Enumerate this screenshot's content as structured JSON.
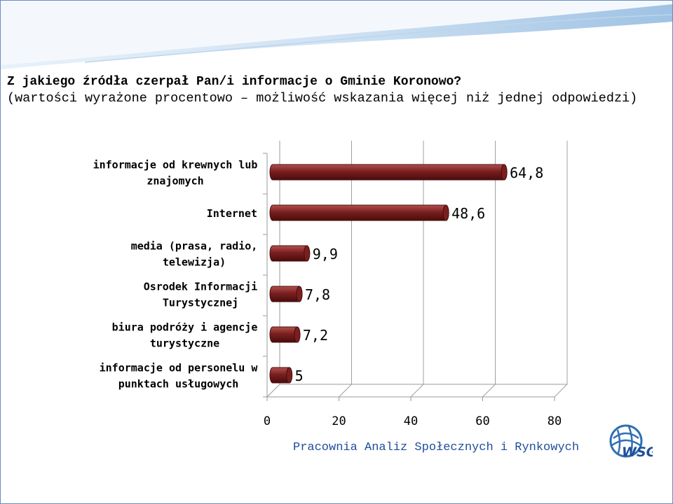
{
  "question": "Z jakiego źródła czerpał Pan/i informacje o Gminie Koronowo?",
  "note": "(wartości wyrażone procentowo – możliwość wskazania więcej niż jednej odpowiedzi)",
  "footer": "Pracownia Analiz Społecznych i Rynkowych",
  "logo_text": "WSG",
  "colors": {
    "bar": "#7a1f1f",
    "bar_light": "#b25050",
    "bar_dark": "#4a0c0c",
    "frame": "#1f4e9a",
    "swoosh": "#a9c8e6"
  },
  "chart_data": {
    "type": "bar",
    "orientation": "horizontal",
    "categories": [
      [
        "informacje od krewnych lub",
        "znajomych"
      ],
      [
        "Internet"
      ],
      [
        "media (prasa, radio,",
        "telewizja)"
      ],
      [
        "Osrodek Informacji",
        "Turystycznej"
      ],
      [
        "biura podróży i agencje",
        "turystyczne"
      ],
      [
        "informacje od personelu w",
        "punktach usługowych"
      ]
    ],
    "values": [
      64.8,
      48.6,
      9.9,
      7.8,
      7.2,
      5
    ],
    "value_labels": [
      "64,8",
      "48,6",
      "9,9",
      "7,8",
      "7,2",
      "5"
    ],
    "xlim": [
      0,
      80
    ],
    "xticks": [
      "0",
      "20",
      "40",
      "60",
      "80"
    ],
    "grid": true
  }
}
